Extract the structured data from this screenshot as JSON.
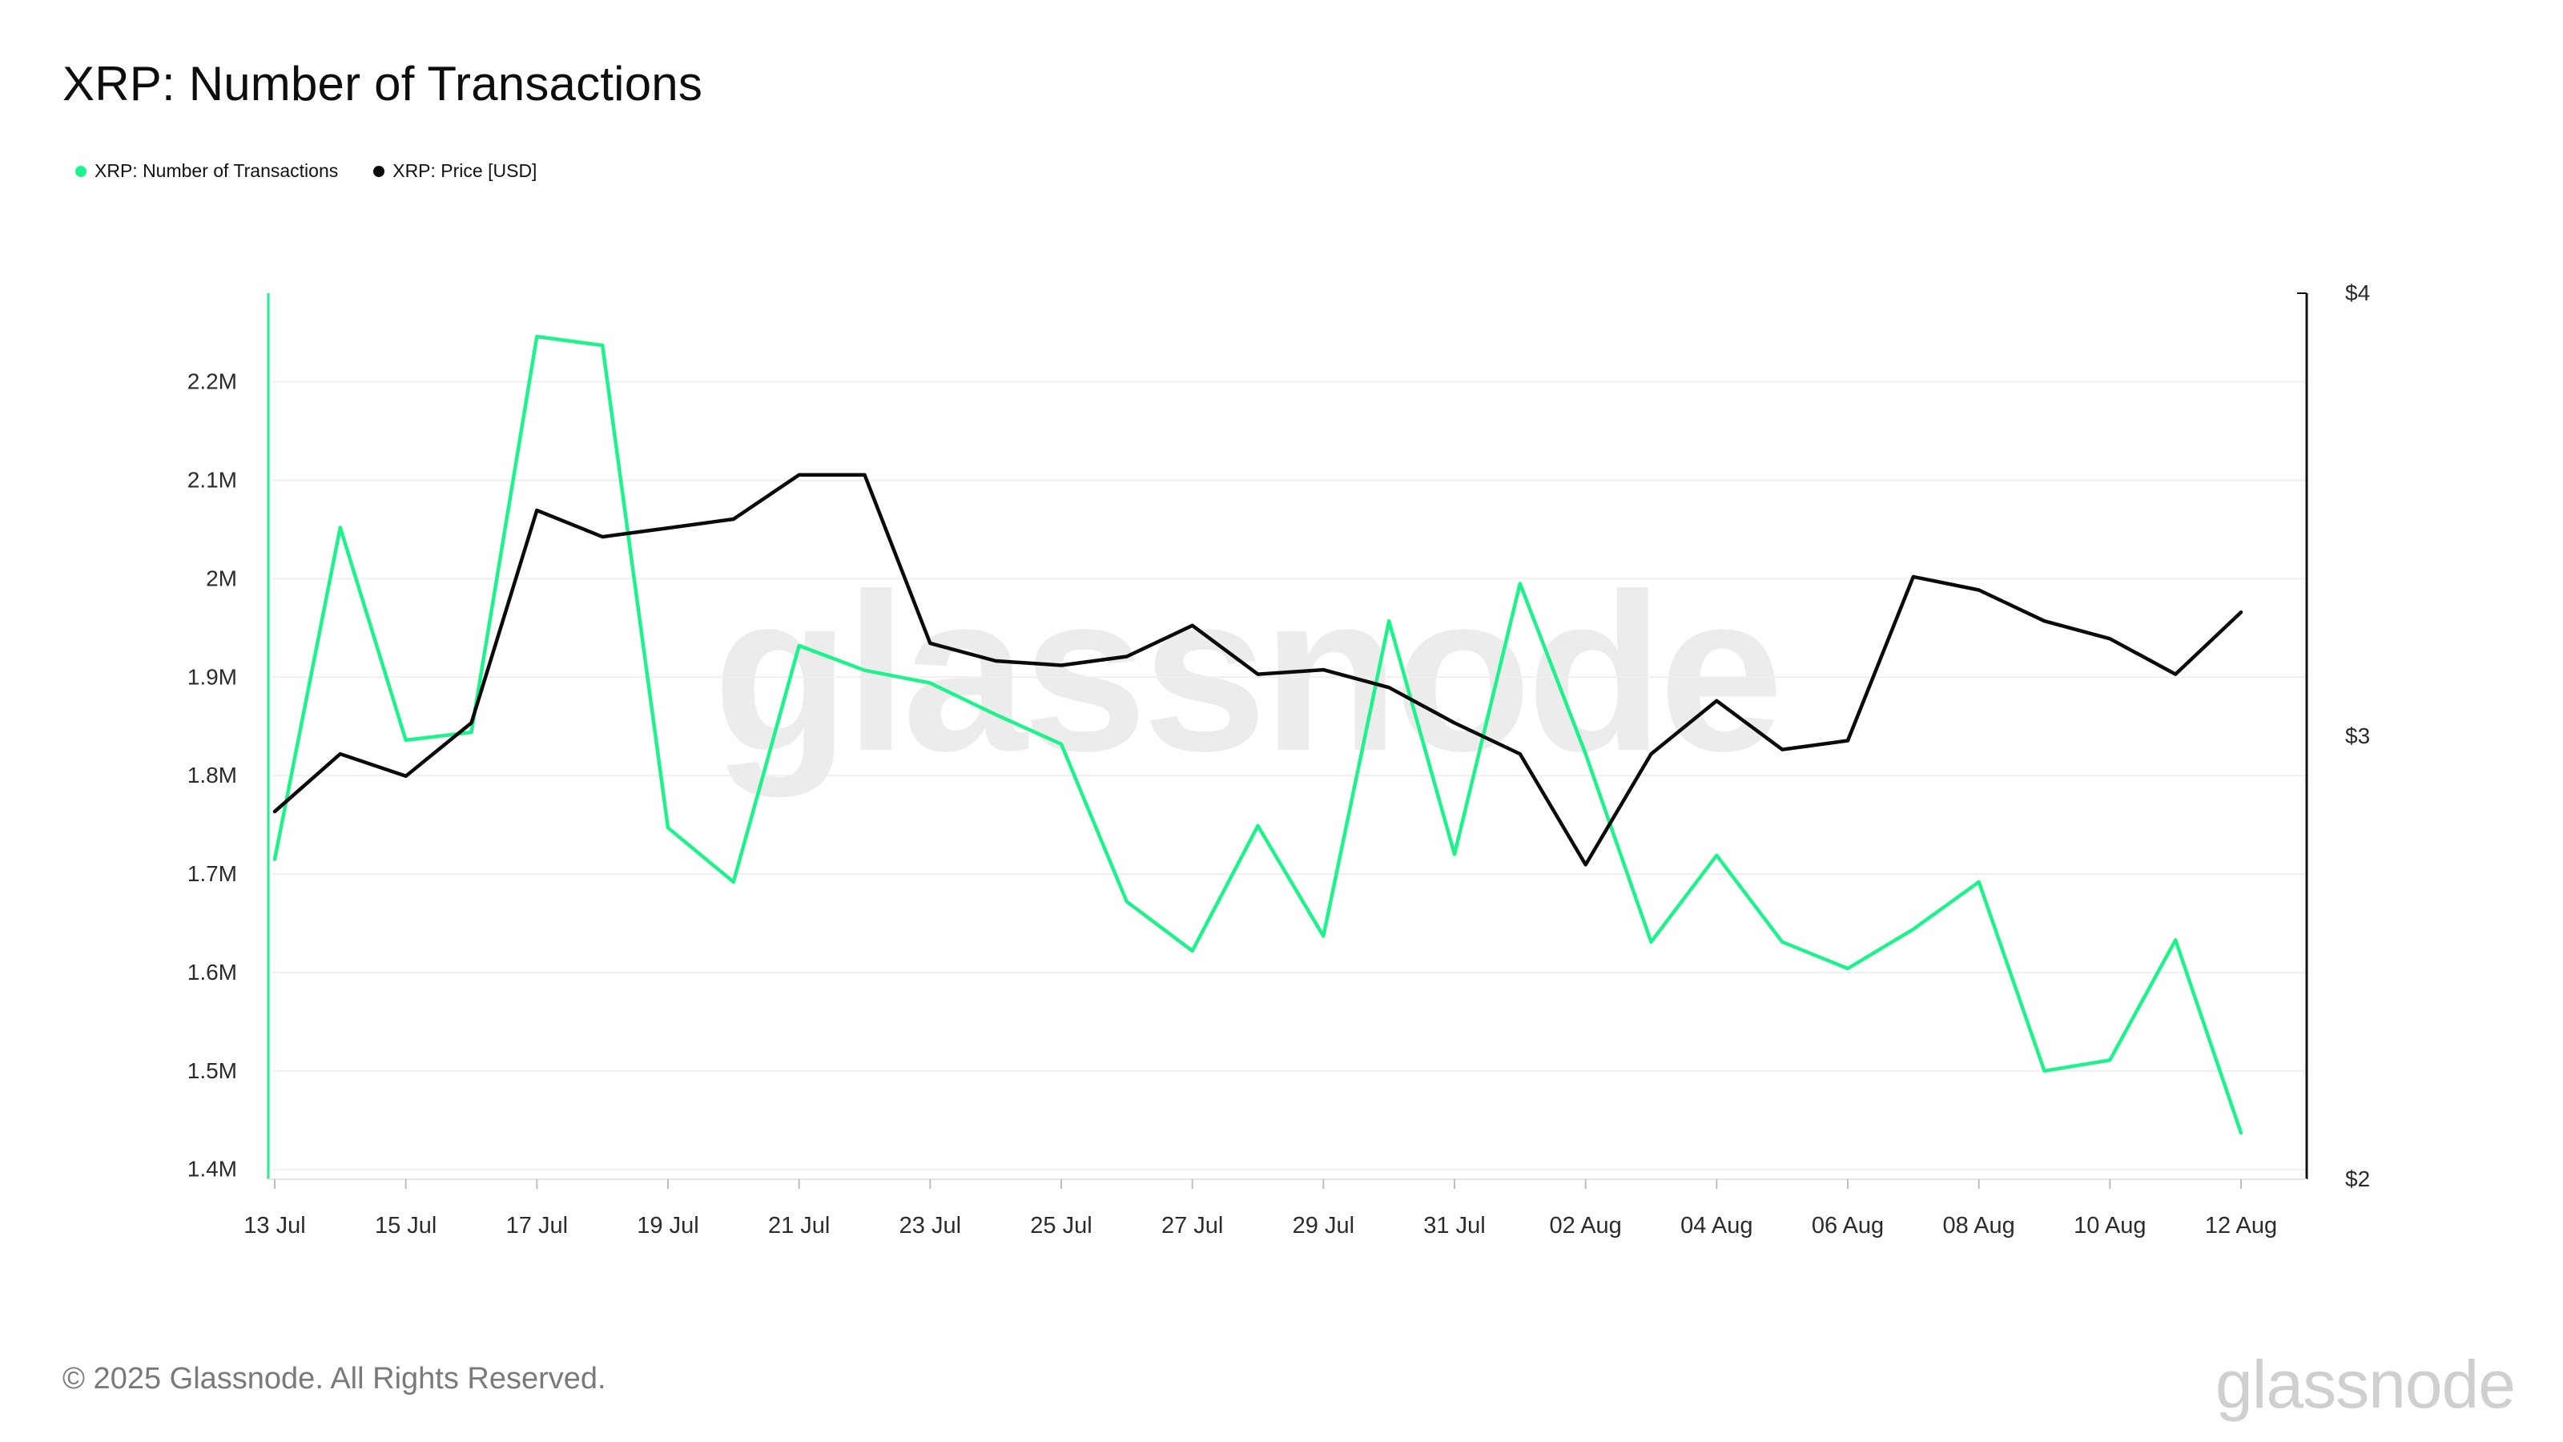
{
  "header": {
    "title": "XRP: Number of Transactions"
  },
  "legend": {
    "items": [
      {
        "label": "XRP: Number of Transactions",
        "color": "#1ef28b"
      },
      {
        "label": "XRP: Price [USD]",
        "color": "#0a0a0a"
      }
    ]
  },
  "watermark": "glassnode",
  "footer": {
    "copyright": "© 2025 Glassnode. All Rights Reserved.",
    "brand": "glassnode"
  },
  "chart_data": {
    "type": "line",
    "title": "XRP: Number of Transactions",
    "x": [
      "13 Jul",
      "14 Jul",
      "15 Jul",
      "16 Jul",
      "17 Jul",
      "18 Jul",
      "19 Jul",
      "20 Jul",
      "21 Jul",
      "22 Jul",
      "23 Jul",
      "24 Jul",
      "25 Jul",
      "26 Jul",
      "27 Jul",
      "28 Jul",
      "29 Jul",
      "30 Jul",
      "31 Jul",
      "01 Aug",
      "02 Aug",
      "03 Aug",
      "04 Aug",
      "05 Aug",
      "06 Aug",
      "07 Aug",
      "08 Aug",
      "09 Aug",
      "10 Aug",
      "11 Aug",
      "12 Aug"
    ],
    "x_tick_labels": [
      "13 Jul",
      "15 Jul",
      "17 Jul",
      "19 Jul",
      "21 Jul",
      "23 Jul",
      "25 Jul",
      "27 Jul",
      "29 Jul",
      "31 Jul",
      "02 Aug",
      "04 Aug",
      "06 Aug",
      "08 Aug",
      "10 Aug",
      "12 Aug"
    ],
    "y_left": {
      "ylim": [
        1390000,
        2290000
      ],
      "ticks": [
        1400000,
        1500000,
        1600000,
        1700000,
        1800000,
        1900000,
        2000000,
        2100000,
        2200000
      ],
      "tick_labels": [
        "1.4M",
        "1.5M",
        "1.6M",
        "1.7M",
        "1.8M",
        "1.9M",
        "2M",
        "2.1M",
        "2.2M"
      ]
    },
    "y_right": {
      "ylim": [
        2.0,
        4.0
      ],
      "ticks": [
        2,
        3,
        4
      ],
      "tick_labels": [
        "$2",
        "$3",
        "$4"
      ]
    },
    "grid": true,
    "legend_position": "top-left",
    "series": [
      {
        "name": "XRP: Number of Transactions",
        "axis": "left",
        "color": "#1ef28b",
        "values": [
          1715000,
          2052000,
          1836000,
          1844000,
          2246000,
          2237000,
          1747000,
          1692000,
          1932000,
          1907000,
          1894000,
          1862000,
          1832000,
          1672000,
          1622000,
          1749000,
          1637000,
          1957000,
          1720000,
          1995000,
          1822000,
          1631000,
          1719000,
          1631000,
          1604000,
          1644000,
          1692000,
          1500000,
          1511000,
          1633000,
          1437000
        ]
      },
      {
        "name": "XRP: Price [USD]",
        "axis": "right",
        "color": "#0a0a0a",
        "values": [
          2.83,
          2.96,
          2.91,
          3.03,
          3.51,
          3.45,
          3.47,
          3.49,
          3.59,
          3.59,
          3.21,
          3.17,
          3.16,
          3.18,
          3.25,
          3.14,
          3.15,
          3.11,
          3.03,
          2.96,
          2.71,
          2.96,
          3.08,
          2.97,
          2.99,
          3.36,
          3.33,
          3.26,
          3.22,
          3.14,
          3.28
        ]
      }
    ]
  }
}
